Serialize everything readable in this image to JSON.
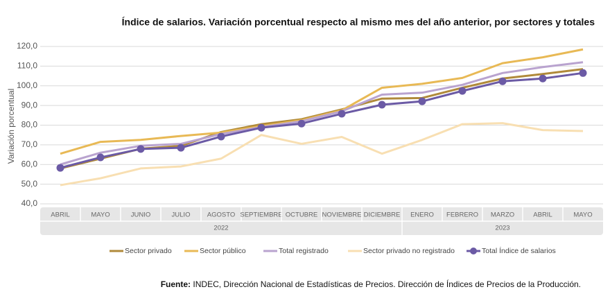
{
  "chart_data": {
    "type": "line",
    "title": "Índice de salarios. Variación porcentual respecto al mismo mes del año anterior, por sectores y totales",
    "y_label": "Variación porcentual",
    "category_groups": [
      {
        "label": "2022",
        "categories": [
          "ABRIL",
          "MAYO",
          "JUNIO",
          "JULIO",
          "AGOSTO",
          "SEPTIEMBRE",
          "OCTUBRE",
          "NOVIEMBRE",
          "DICIEMBRE"
        ]
      },
      {
        "label": "2023",
        "categories": [
          "ENERO",
          "FEBRERO",
          "MARZO",
          "ABRIL",
          "MAYO"
        ]
      }
    ],
    "series": [
      {
        "name": "Sector privado",
        "color": "#b08a3a",
        "values": [
          58.0,
          63.0,
          68.0,
          69.5,
          76.5,
          80.5,
          83.0,
          88.0,
          93.5,
          93.8,
          99.0,
          103.7,
          106.0,
          108.5
        ]
      },
      {
        "name": "Sector público",
        "color": "#e8b955",
        "values": [
          65.5,
          71.5,
          72.5,
          74.5,
          76.2,
          79.5,
          82.5,
          87.5,
          99.0,
          101.0,
          104.0,
          111.5,
          114.5,
          118.5
        ]
      },
      {
        "name": "Total registrado",
        "color": "#b9a3cf",
        "values": [
          60.0,
          66.0,
          69.5,
          70.5,
          75.5,
          79.0,
          82.0,
          87.0,
          95.5,
          96.5,
          100.5,
          106.5,
          109.5,
          112.0
        ]
      },
      {
        "name": "Sector privado no registrado",
        "color": "#f8dfb2",
        "values": [
          49.5,
          53.0,
          58.0,
          59.0,
          63.0,
          75.0,
          70.5,
          74.0,
          65.5,
          72.5,
          80.5,
          81.0,
          77.5,
          77.0
        ]
      },
      {
        "name": "Total Índice de salarios",
        "color": "#6b5aa5",
        "markers": true,
        "values": [
          58.3,
          63.6,
          67.9,
          68.5,
          74.2,
          78.7,
          80.8,
          85.8,
          90.4,
          92.1,
          97.4,
          102.3,
          103.7,
          106.5
        ]
      }
    ],
    "ylim": [
      40,
      120
    ],
    "yticks": [
      {
        "value": 40,
        "label": "40,0"
      },
      {
        "value": 50,
        "label": "50,0"
      },
      {
        "value": 60,
        "label": "60,0"
      },
      {
        "value": 70,
        "label": "70,0"
      },
      {
        "value": 80,
        "label": "80,0"
      },
      {
        "value": 90,
        "label": "90,0"
      },
      {
        "value": 100,
        "label": "100,0"
      },
      {
        "value": 110,
        "label": "110,0"
      },
      {
        "value": 120,
        "label": "120,0"
      }
    ],
    "grid": true,
    "source_label": "Fuente:",
    "source": "INDEC, Dirección Nacional de Estadísticas de Precios. Dirección de Índices de Precios de la Producción."
  }
}
